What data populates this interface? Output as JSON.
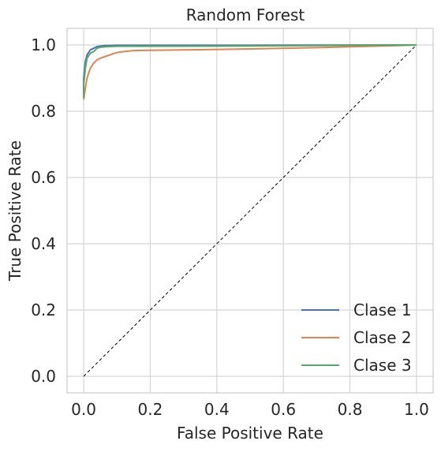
{
  "chart_data": {
    "type": "line",
    "title": "Random Forest",
    "xlabel": "False Positive Rate",
    "ylabel": "True Positive Rate",
    "xlim": [
      -0.05,
      1.05
    ],
    "ylim": [
      -0.05,
      1.05
    ],
    "xticks": [
      0.0,
      0.2,
      0.4,
      0.6,
      0.8,
      1.0
    ],
    "yticks": [
      0.0,
      0.2,
      0.4,
      0.6,
      0.8,
      1.0
    ],
    "xtick_labels": [
      "0.0",
      "0.2",
      "0.4",
      "0.6",
      "0.8",
      "1.0"
    ],
    "ytick_labels": [
      "0.0",
      "0.2",
      "0.4",
      "0.6",
      "0.8",
      "1.0"
    ],
    "grid": true,
    "legend_position": "bottom-right",
    "diagonal": {
      "x": [
        0,
        1
      ],
      "y": [
        0,
        1
      ],
      "color": "#000000",
      "style": "dashed"
    },
    "series": [
      {
        "name": "Clase 1",
        "color": "#4c72b0",
        "x": [
          0.0,
          0.0,
          0.005,
          0.01,
          0.02,
          0.03,
          0.04,
          0.06,
          0.1,
          0.2,
          0.5,
          1.0
        ],
        "y": [
          0.85,
          0.9,
          0.95,
          0.97,
          0.985,
          0.99,
          0.995,
          0.998,
          0.999,
          0.999,
          0.999,
          1.0
        ]
      },
      {
        "name": "Clase 2",
        "color": "#dd8452",
        "x": [
          0.0,
          0.005,
          0.01,
          0.02,
          0.03,
          0.04,
          0.05,
          0.07,
          0.09,
          0.1,
          0.12,
          0.15,
          0.2,
          0.3,
          0.5,
          0.7,
          0.9,
          1.0
        ],
        "y": [
          0.835,
          0.87,
          0.9,
          0.93,
          0.945,
          0.955,
          0.96,
          0.967,
          0.974,
          0.977,
          0.98,
          0.983,
          0.984,
          0.985,
          0.988,
          0.992,
          0.997,
          1.0
        ]
      },
      {
        "name": "Clase 3",
        "color": "#55a868",
        "x": [
          0.0,
          0.0,
          0.005,
          0.01,
          0.02,
          0.03,
          0.04,
          0.05,
          0.07,
          0.1,
          0.2,
          0.5,
          1.0
        ],
        "y": [
          0.84,
          0.88,
          0.93,
          0.96,
          0.975,
          0.98,
          0.99,
          0.993,
          0.995,
          0.996,
          0.996,
          0.997,
          1.0
        ]
      }
    ]
  }
}
